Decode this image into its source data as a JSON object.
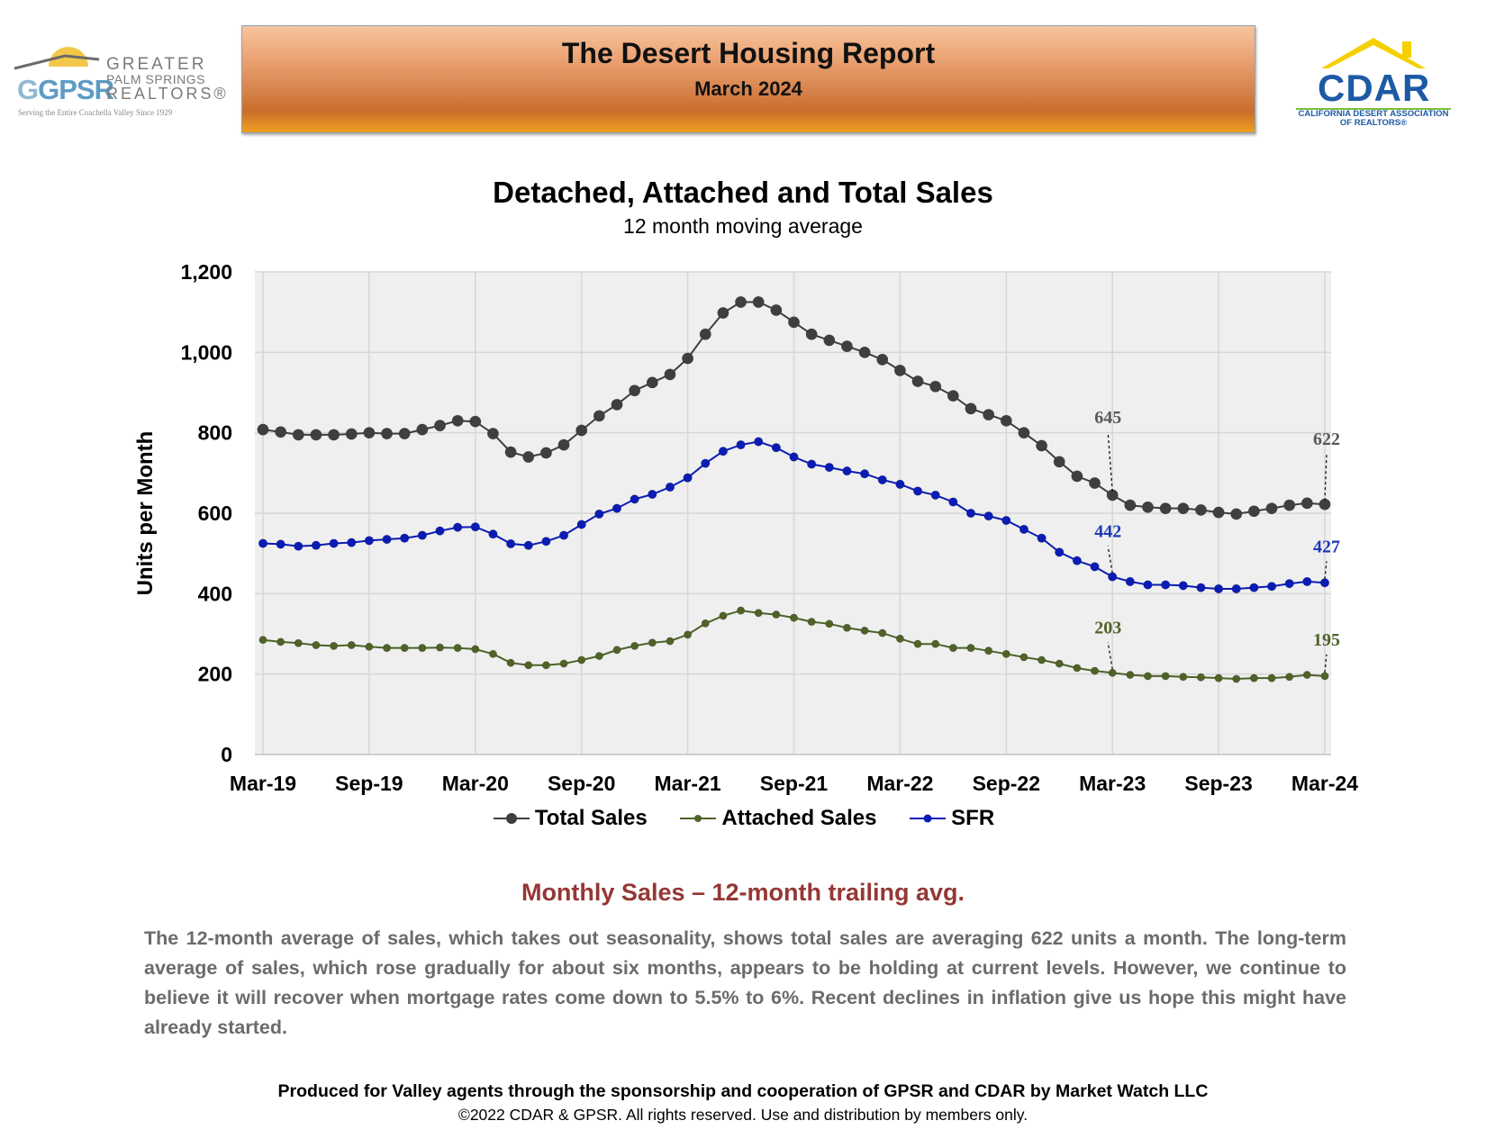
{
  "header": {
    "title": "The Desert Housing Report",
    "subtitle": "March 2024",
    "left_logo": {
      "mark": "GPSR",
      "line1": "GREATER",
      "line2": "PALM SPRINGS",
      "line3": "REALTORS®",
      "tagline": "Serving the Entire Coachella Valley Since 1929"
    },
    "right_logo": {
      "mark": "CDAR",
      "line1": "CALIFORNIA DESERT ASSOCIATION",
      "line2": "OF REALTORS®"
    }
  },
  "chart_data": {
    "type": "line",
    "title": "Detached, Attached and Total Sales",
    "subtitle": "12 month moving average",
    "xlabel": "",
    "ylabel": "Units per Month",
    "ylim": [
      0,
      1200
    ],
    "yticks": [
      0,
      200,
      400,
      600,
      800,
      1000,
      1200
    ],
    "ytick_labels": [
      "0",
      "200",
      "400",
      "600",
      "800",
      "1,000",
      "1,200"
    ],
    "grid": true,
    "legend_position": "bottom",
    "x_tick_labels": [
      "Mar-19",
      "Sep-19",
      "Mar-20",
      "Sep-20",
      "Mar-21",
      "Sep-21",
      "Mar-22",
      "Sep-22",
      "Mar-23",
      "Sep-23",
      "Mar-24"
    ],
    "x_tick_indices": [
      0,
      6,
      12,
      18,
      24,
      30,
      36,
      42,
      48,
      54,
      60
    ],
    "months": 61,
    "series": [
      {
        "name": "Total Sales",
        "color": "#3f3f3f",
        "values": [
          808,
          802,
          795,
          795,
          795,
          797,
          800,
          798,
          798,
          808,
          818,
          830,
          828,
          798,
          752,
          740,
          750,
          770,
          806,
          842,
          870,
          905,
          925,
          945,
          985,
          1045,
          1098,
          1125,
          1125,
          1105,
          1075,
          1045,
          1030,
          1015,
          1000,
          982,
          955,
          928,
          915,
          892,
          860,
          845,
          830,
          800,
          768,
          728,
          692,
          675,
          645,
          620,
          615,
          612,
          612,
          608,
          602,
          598,
          605,
          612,
          620,
          625,
          622
        ]
      },
      {
        "name": "Attached Sales",
        "color": "#4f6228",
        "values": [
          285,
          280,
          277,
          272,
          270,
          272,
          268,
          265,
          265,
          265,
          266,
          265,
          262,
          250,
          228,
          222,
          222,
          226,
          235,
          245,
          260,
          270,
          278,
          282,
          298,
          326,
          345,
          358,
          352,
          348,
          340,
          330,
          325,
          315,
          308,
          302,
          288,
          275,
          275,
          265,
          265,
          258,
          250,
          242,
          235,
          226,
          215,
          208,
          203,
          198,
          195,
          195,
          193,
          192,
          190,
          188,
          190,
          190,
          193,
          198,
          195
        ]
      },
      {
        "name": "SFR",
        "color": "#0b1cb5",
        "values": [
          525,
          523,
          518,
          520,
          525,
          527,
          532,
          535,
          538,
          545,
          556,
          565,
          566,
          548,
          524,
          520,
          530,
          545,
          572,
          598,
          612,
          635,
          647,
          665,
          688,
          724,
          754,
          770,
          778,
          763,
          740,
          722,
          714,
          705,
          698,
          683,
          672,
          655,
          645,
          628,
          600,
          593,
          582,
          560,
          538,
          503,
          482,
          467,
          442,
          430,
          422,
          422,
          420,
          415,
          412,
          412,
          415,
          418,
          425,
          430,
          427
        ]
      }
    ],
    "annotations": [
      {
        "series": "Total Sales",
        "label": "645",
        "month": 48,
        "value": 645
      },
      {
        "series": "Total Sales",
        "label": "622",
        "month": 60,
        "value": 622
      },
      {
        "series": "SFR",
        "label": "442",
        "month": 48,
        "value": 442
      },
      {
        "series": "SFR",
        "label": "427",
        "month": 60,
        "value": 427
      },
      {
        "series": "Attached Sales",
        "label": "203",
        "month": 48,
        "value": 203
      },
      {
        "series": "Attached Sales",
        "label": "195",
        "month": 60,
        "value": 195
      }
    ]
  },
  "legend": {
    "total": "Total Sales",
    "attached": "Attached Sales",
    "sfr": "SFR"
  },
  "commentary": {
    "heading": "Monthly Sales – 12-month trailing avg.",
    "body": "The 12-month average of sales, which takes out seasonality, shows total sales are averaging 622 units a month. The long-term average of sales, which rose gradually for about six months, appears to be holding at current levels. However, we continue to believe it will recover when mortgage rates come down to 5.5% to 6%. Recent declines in inflation give us hope this might have already started."
  },
  "footer": {
    "line1": "Produced for Valley agents through the sponsorship and cooperation of GPSR and CDAR by Market Watch LLC",
    "line2": "©2022 CDAR & GPSR.  All rights reserved.  Use and distribution by members only."
  }
}
